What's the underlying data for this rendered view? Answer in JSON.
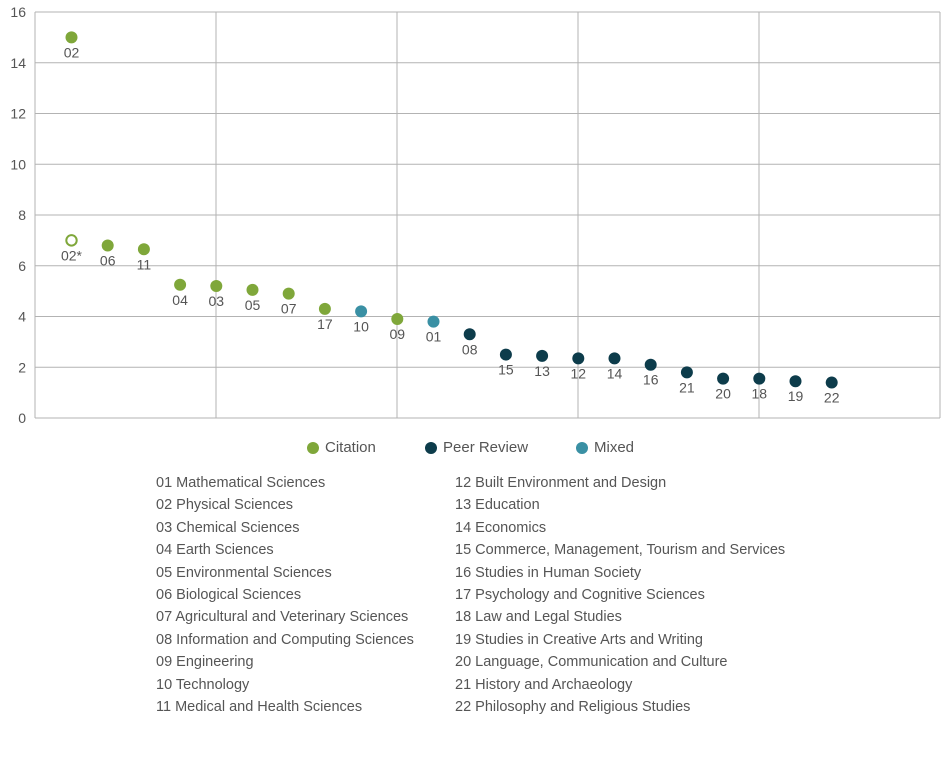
{
  "chart_data": {
    "type": "scatter",
    "title": "",
    "xlabel": "",
    "ylabel": "",
    "ylim": [
      0,
      16
    ],
    "yticks": [
      0,
      2,
      4,
      6,
      8,
      10,
      12,
      14,
      16
    ],
    "grid": true,
    "legend_position": "bottom",
    "series": [
      {
        "name": "Citation",
        "color": "#7fa73a"
      },
      {
        "name": "Peer Review",
        "color": "#0d3c4b"
      },
      {
        "name": "Mixed",
        "color": "#3a90a4"
      }
    ],
    "points": [
      {
        "label": "02",
        "x": 1,
        "y": 15.0,
        "series": "Citation",
        "hollow": false
      },
      {
        "label": "02*",
        "x": 1,
        "y": 7.0,
        "series": "Citation",
        "hollow": true
      },
      {
        "label": "06",
        "x": 2,
        "y": 6.8,
        "series": "Citation",
        "hollow": false
      },
      {
        "label": "11",
        "x": 3,
        "y": 6.65,
        "series": "Citation",
        "hollow": false
      },
      {
        "label": "04",
        "x": 4,
        "y": 5.25,
        "series": "Citation",
        "hollow": false
      },
      {
        "label": "03",
        "x": 5,
        "y": 5.2,
        "series": "Citation",
        "hollow": false
      },
      {
        "label": "05",
        "x": 6,
        "y": 5.05,
        "series": "Citation",
        "hollow": false
      },
      {
        "label": "07",
        "x": 7,
        "y": 4.9,
        "series": "Citation",
        "hollow": false
      },
      {
        "label": "17",
        "x": 8,
        "y": 4.3,
        "series": "Citation",
        "hollow": false
      },
      {
        "label": "10",
        "x": 9,
        "y": 4.2,
        "series": "Mixed",
        "hollow": false
      },
      {
        "label": "09",
        "x": 10,
        "y": 3.9,
        "series": "Citation",
        "hollow": false
      },
      {
        "label": "01",
        "x": 11,
        "y": 3.8,
        "series": "Mixed",
        "hollow": false
      },
      {
        "label": "08",
        "x": 12,
        "y": 3.3,
        "series": "Peer Review",
        "hollow": false
      },
      {
        "label": "15",
        "x": 13,
        "y": 2.5,
        "series": "Peer Review",
        "hollow": false
      },
      {
        "label": "13",
        "x": 14,
        "y": 2.45,
        "series": "Peer Review",
        "hollow": false
      },
      {
        "label": "12",
        "x": 15,
        "y": 2.35,
        "series": "Peer Review",
        "hollow": false
      },
      {
        "label": "14",
        "x": 16,
        "y": 2.35,
        "series": "Peer Review",
        "hollow": false
      },
      {
        "label": "16",
        "x": 17,
        "y": 2.1,
        "series": "Peer Review",
        "hollow": false
      },
      {
        "label": "21",
        "x": 18,
        "y": 1.8,
        "series": "Peer Review",
        "hollow": false
      },
      {
        "label": "20",
        "x": 19,
        "y": 1.55,
        "series": "Peer Review",
        "hollow": false
      },
      {
        "label": "18",
        "x": 20,
        "y": 1.55,
        "series": "Peer Review",
        "hollow": false
      },
      {
        "label": "19",
        "x": 21,
        "y": 1.45,
        "series": "Peer Review",
        "hollow": false
      },
      {
        "label": "22",
        "x": 22,
        "y": 1.4,
        "series": "Peer Review",
        "hollow": false
      }
    ]
  },
  "key": {
    "left": [
      "01 Mathematical Sciences",
      "02 Physical Sciences",
      "03 Chemical Sciences",
      "04 Earth Sciences",
      "05 Environmental Sciences",
      "06 Biological Sciences",
      "07 Agricultural and Veterinary Sciences",
      "08 Information and Computing Sciences",
      "09 Engineering",
      "10 Technology",
      "11 Medical and Health Sciences"
    ],
    "right": [
      "12 Built Environment and Design",
      "13 Education",
      "14 Economics",
      "15 Commerce, Management, Tourism and Services",
      "16 Studies in Human Society",
      "17 Psychology and Cognitive Sciences",
      "18 Law and Legal Studies",
      "19 Studies in Creative Arts and Writing",
      "20 Language, Communication and Culture",
      "21 History and Archaeology",
      "22 Philosophy and Religious Studies"
    ]
  }
}
